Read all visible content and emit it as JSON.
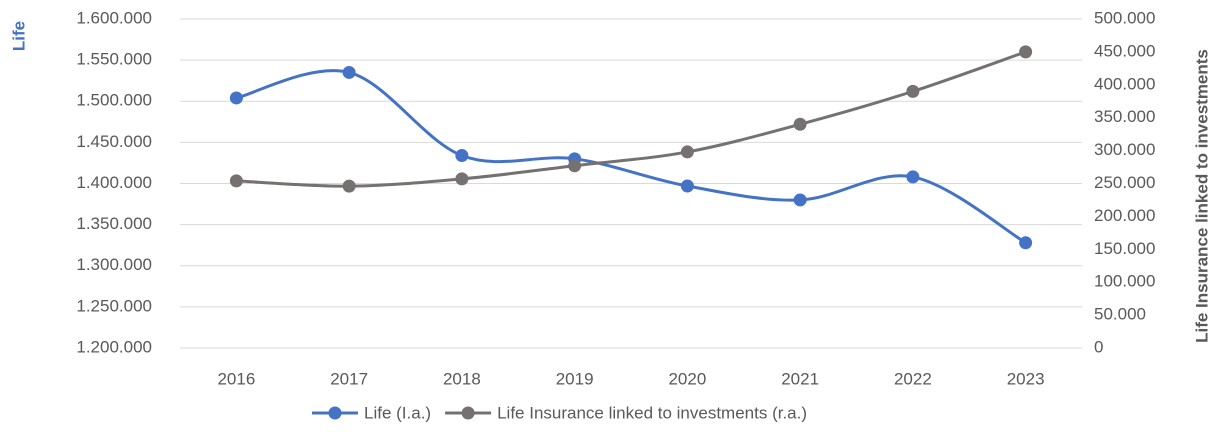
{
  "chart_data": {
    "type": "line",
    "y_label": "Life",
    "y2_label": "Life Insurance linked to investments",
    "categories": [
      "2016",
      "2017",
      "2018",
      "2019",
      "2020",
      "2021",
      "2022",
      "2023"
    ],
    "series": [
      {
        "name": "Life (I.a.)",
        "color": "#4472c4",
        "values": [
          1504000,
          1535000,
          1434000,
          1430000,
          1397000,
          1380000,
          1408000,
          1328000
        ]
      },
      {
        "name": "Life Insurance linked to investments (r.a.)",
        "color": "#767171",
        "axis": "y2",
        "values": [
          254000,
          246000,
          257000,
          277000,
          298000,
          340000,
          390000,
          450000
        ]
      }
    ],
    "ylim": [
      1200000,
      1600000
    ],
    "yticks": [
      {
        "value": 1200000,
        "label": "1.200.000"
      },
      {
        "value": 1250000,
        "label": "1.250.000"
      },
      {
        "value": 1300000,
        "label": "1.300.000"
      },
      {
        "value": 1350000,
        "label": "1.350.000"
      },
      {
        "value": 1400000,
        "label": "1.400.000"
      },
      {
        "value": 1450000,
        "label": "1.450.000"
      },
      {
        "value": 1500000,
        "label": "1.500.000"
      },
      {
        "value": 1550000,
        "label": "1.550.000"
      },
      {
        "value": 1600000,
        "label": "1.600.000"
      }
    ],
    "y2lim": [
      0,
      500000
    ],
    "y2ticks": [
      0,
      {
        "value": 50000,
        "label": "50.000"
      },
      {
        "value": 100000,
        "label": "100.000"
      },
      {
        "value": 150000,
        "label": "150.000"
      },
      {
        "value": 200000,
        "label": "200.000"
      },
      {
        "value": 250000,
        "label": "250.000"
      },
      {
        "value": 300000,
        "label": "300.000"
      },
      {
        "value": 350000,
        "label": "350.000"
      },
      {
        "value": 400000,
        "label": "400.000"
      },
      {
        "value": 450000,
        "label": "450.000"
      },
      {
        "value": 500000,
        "label": "500.000"
      }
    ],
    "grid": true,
    "smooth": true,
    "legend": "bottom"
  }
}
